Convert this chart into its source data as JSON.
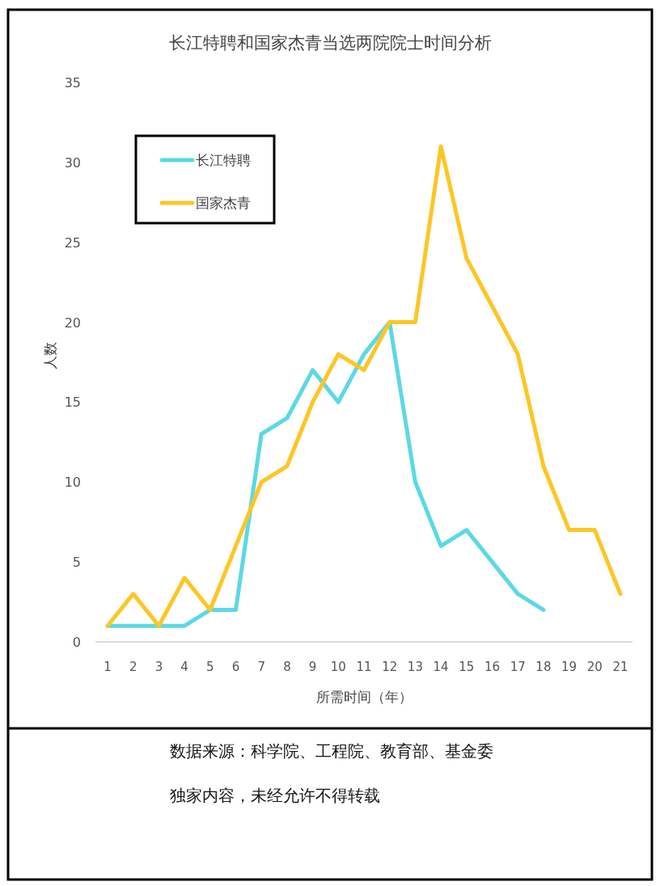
{
  "chart_data": {
    "type": "line",
    "title": "长江特聘和国家杰青当选两院院士时间分析",
    "xlabel": "所需时间（年）",
    "ylabel": "人数",
    "categories": [
      "1",
      "2",
      "3",
      "4",
      "5",
      "6",
      "7",
      "8",
      "9",
      "10",
      "11",
      "12",
      "13",
      "14",
      "15",
      "16",
      "17",
      "18",
      "19",
      "20",
      "21"
    ],
    "series": [
      {
        "name": "长江特聘",
        "color": "#5bd8e6",
        "values": [
          1,
          1,
          1,
          1,
          2,
          2,
          13,
          14,
          17,
          15,
          18,
          20,
          10,
          6,
          7,
          5,
          3,
          2,
          null,
          null,
          null
        ]
      },
      {
        "name": "国家杰青",
        "color": "#fdc626",
        "values": [
          1,
          3,
          1,
          4,
          2,
          6,
          10,
          11,
          15,
          18,
          17,
          20,
          20,
          31,
          24,
          21,
          18,
          11,
          7,
          7,
          3
        ]
      }
    ],
    "ylim": [
      0,
      35
    ],
    "yticks": [
      0,
      5,
      10,
      15,
      20,
      25,
      30,
      35
    ],
    "legend": "top left",
    "annotations": [
      "数据来源：科学院、工程院、教育部、基金委",
      "独家内容，未经允许不得转载"
    ]
  }
}
